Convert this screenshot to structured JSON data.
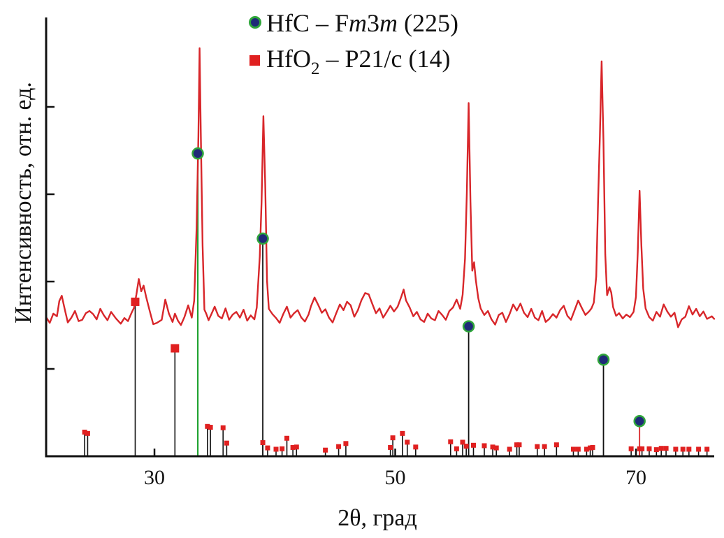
{
  "chart_data": {
    "type": "line",
    "xlabel": "2θ, град",
    "ylabel": "Интенсивность, отн. ед.",
    "xlim": [
      21,
      76.5
    ],
    "ylim": [
      0,
      100
    ],
    "xticks": [
      30,
      50,
      70
    ],
    "ytick_count": 5,
    "grid": false,
    "legend_position": "top-center",
    "colors": {
      "pattern": "#d8262a",
      "hfc_marker_fill": "#1f2a78",
      "hfc_marker_edge": "#2fa63a",
      "hfo2_marker": "#e02020",
      "stick": "#111111",
      "green_line": "#22a332"
    },
    "legend": [
      {
        "formula": "HfC",
        "sep": " – ",
        "sg_lead": "F",
        "sg_italic_1": "m",
        "sg_mid": "3",
        "sg_italic_2": "m",
        "sg_number": " (225)",
        "marker": "circle"
      },
      {
        "formula": "HfO",
        "subscript": "2",
        "sep": " – ",
        "sg": "P21/c",
        "sg_number": " (14)",
        "marker": "square"
      }
    ],
    "series": [
      {
        "name": "HfC – Fm3m (225)",
        "peaks": [
          {
            "x": 33.6,
            "y": 69
          },
          {
            "x": 39.0,
            "y": 49.6
          },
          {
            "x": 56.1,
            "y": 29.6
          },
          {
            "x": 67.3,
            "y": 22.0
          },
          {
            "x": 70.3,
            "y": 8.0
          }
        ]
      },
      {
        "name": "HfO2 – P21/c (14)",
        "peaks": [
          {
            "x": 24.2,
            "y": 5.5
          },
          {
            "x": 24.45,
            "y": 5.2
          },
          {
            "x": 28.4,
            "y": 35.2
          },
          {
            "x": 31.7,
            "y": 24.6
          },
          {
            "x": 34.4,
            "y": 6.8
          },
          {
            "x": 34.65,
            "y": 6.6
          },
          {
            "x": 35.7,
            "y": 6.5
          },
          {
            "x": 36.0,
            "y": 3.0
          },
          {
            "x": 39.0,
            "y": 3.1
          },
          {
            "x": 39.4,
            "y": 1.9
          },
          {
            "x": 40.1,
            "y": 1.6
          },
          {
            "x": 40.6,
            "y": 1.7
          },
          {
            "x": 41.0,
            "y": 4.1
          },
          {
            "x": 41.5,
            "y": 2.0
          },
          {
            "x": 41.8,
            "y": 2.1
          },
          {
            "x": 44.2,
            "y": 1.4
          },
          {
            "x": 45.3,
            "y": 2.2
          },
          {
            "x": 45.9,
            "y": 2.9
          },
          {
            "x": 49.6,
            "y": 2.0
          },
          {
            "x": 49.8,
            "y": 4.2
          },
          {
            "x": 50.6,
            "y": 5.2
          },
          {
            "x": 51.0,
            "y": 3.2
          },
          {
            "x": 51.7,
            "y": 2.1
          },
          {
            "x": 54.6,
            "y": 3.3
          },
          {
            "x": 55.1,
            "y": 1.7
          },
          {
            "x": 55.6,
            "y": 3.2
          },
          {
            "x": 55.9,
            "y": 2.3
          },
          {
            "x": 56.5,
            "y": 2.5
          },
          {
            "x": 57.4,
            "y": 2.4
          },
          {
            "x": 58.1,
            "y": 2.1
          },
          {
            "x": 58.4,
            "y": 1.9
          },
          {
            "x": 59.5,
            "y": 1.6
          },
          {
            "x": 60.1,
            "y": 2.6
          },
          {
            "x": 60.3,
            "y": 2.6
          },
          {
            "x": 61.8,
            "y": 2.2
          },
          {
            "x": 62.4,
            "y": 2.2
          },
          {
            "x": 63.4,
            "y": 2.6
          },
          {
            "x": 64.8,
            "y": 1.6
          },
          {
            "x": 65.2,
            "y": 1.6
          },
          {
            "x": 65.9,
            "y": 1.6
          },
          {
            "x": 66.2,
            "y": 1.9
          },
          {
            "x": 66.4,
            "y": 2.0
          },
          {
            "x": 69.6,
            "y": 1.7
          },
          {
            "x": 70.3,
            "y": 1.7
          },
          {
            "x": 70.5,
            "y": 1.7
          },
          {
            "x": 71.1,
            "y": 1.7
          },
          {
            "x": 71.7,
            "y": 1.5
          },
          {
            "x": 72.1,
            "y": 1.8
          },
          {
            "x": 72.5,
            "y": 1.8
          },
          {
            "x": 73.3,
            "y": 1.6
          },
          {
            "x": 73.9,
            "y": 1.6
          },
          {
            "x": 74.4,
            "y": 1.6
          },
          {
            "x": 75.2,
            "y": 1.6
          },
          {
            "x": 75.9,
            "y": 1.6
          }
        ]
      }
    ],
    "pattern": {
      "points": [
        [
          21.0,
          31.7
        ],
        [
          21.3,
          30.4
        ],
        [
          21.6,
          32.5
        ],
        [
          21.9,
          31.9
        ],
        [
          22.1,
          35.4
        ],
        [
          22.3,
          36.6
        ],
        [
          22.5,
          34.1
        ],
        [
          22.8,
          30.5
        ],
        [
          23.1,
          31.6
        ],
        [
          23.4,
          33.1
        ],
        [
          23.7,
          30.8
        ],
        [
          24.0,
          31.1
        ],
        [
          24.3,
          32.6
        ],
        [
          24.6,
          33.1
        ],
        [
          24.9,
          32.4
        ],
        [
          25.2,
          31.2
        ],
        [
          25.5,
          33.6
        ],
        [
          25.8,
          32.1
        ],
        [
          26.1,
          31.0
        ],
        [
          26.4,
          32.9
        ],
        [
          26.8,
          31.4
        ],
        [
          27.2,
          30.2
        ],
        [
          27.5,
          31.5
        ],
        [
          27.8,
          30.8
        ],
        [
          28.1,
          32.7
        ],
        [
          28.3,
          33.8
        ],
        [
          28.5,
          36.9
        ],
        [
          28.7,
          40.4
        ],
        [
          28.9,
          37.6
        ],
        [
          29.1,
          38.9
        ],
        [
          29.3,
          36.4
        ],
        [
          29.6,
          33.2
        ],
        [
          29.9,
          30.1
        ],
        [
          30.2,
          30.4
        ],
        [
          30.6,
          31.1
        ],
        [
          30.9,
          35.7
        ],
        [
          31.2,
          32.5
        ],
        [
          31.5,
          30.6
        ],
        [
          31.7,
          32.5
        ],
        [
          31.95,
          30.9
        ],
        [
          32.2,
          29.9
        ],
        [
          32.5,
          31.8
        ],
        [
          32.8,
          34.4
        ],
        [
          33.1,
          31.6
        ],
        [
          33.3,
          35.5
        ],
        [
          33.5,
          52.0
        ],
        [
          33.65,
          73.0
        ],
        [
          33.75,
          93.0
        ],
        [
          33.85,
          74.0
        ],
        [
          34.0,
          48.0
        ],
        [
          34.15,
          33.4
        ],
        [
          34.3,
          32.5
        ],
        [
          34.5,
          31.0
        ],
        [
          34.75,
          32.5
        ],
        [
          35.0,
          34.1
        ],
        [
          35.3,
          32.0
        ],
        [
          35.6,
          31.4
        ],
        [
          35.9,
          33.7
        ],
        [
          36.2,
          31.1
        ],
        [
          36.5,
          32.3
        ],
        [
          36.8,
          32.9
        ],
        [
          37.1,
          31.6
        ],
        [
          37.4,
          33.4
        ],
        [
          37.7,
          30.9
        ],
        [
          38.0,
          32.1
        ],
        [
          38.3,
          31.2
        ],
        [
          38.5,
          33.9
        ],
        [
          38.75,
          45.5
        ],
        [
          38.9,
          58.0
        ],
        [
          39.05,
          77.5
        ],
        [
          39.2,
          62.0
        ],
        [
          39.35,
          40.0
        ],
        [
          39.5,
          33.6
        ],
        [
          39.8,
          32.4
        ],
        [
          40.1,
          31.5
        ],
        [
          40.4,
          30.4
        ],
        [
          40.7,
          32.4
        ],
        [
          41.0,
          34.1
        ],
        [
          41.3,
          31.6
        ],
        [
          41.6,
          32.6
        ],
        [
          41.9,
          33.3
        ],
        [
          42.2,
          31.6
        ],
        [
          42.5,
          30.7
        ],
        [
          42.8,
          32.3
        ],
        [
          43.0,
          34.2
        ],
        [
          43.3,
          36.2
        ],
        [
          43.6,
          34.5
        ],
        [
          43.9,
          32.7
        ],
        [
          44.2,
          33.5
        ],
        [
          44.5,
          31.6
        ],
        [
          44.8,
          30.5
        ],
        [
          45.1,
          32.6
        ],
        [
          45.4,
          34.6
        ],
        [
          45.7,
          33.3
        ],
        [
          46.0,
          35.2
        ],
        [
          46.3,
          34.4
        ],
        [
          46.6,
          31.8
        ],
        [
          46.9,
          33.3
        ],
        [
          47.2,
          35.6
        ],
        [
          47.5,
          37.2
        ],
        [
          47.8,
          36.9
        ],
        [
          48.1,
          34.7
        ],
        [
          48.4,
          32.6
        ],
        [
          48.7,
          33.7
        ],
        [
          49.0,
          31.6
        ],
        [
          49.3,
          32.9
        ],
        [
          49.6,
          34.3
        ],
        [
          49.9,
          33.0
        ],
        [
          50.2,
          34.1
        ],
        [
          50.5,
          36.3
        ],
        [
          50.7,
          38.0
        ],
        [
          50.9,
          35.5
        ],
        [
          51.2,
          33.9
        ],
        [
          51.5,
          31.9
        ],
        [
          51.8,
          32.9
        ],
        [
          52.1,
          31.2
        ],
        [
          52.4,
          30.6
        ],
        [
          52.7,
          32.5
        ],
        [
          53.0,
          31.4
        ],
        [
          53.3,
          31.0
        ],
        [
          53.6,
          33.1
        ],
        [
          53.9,
          32.2
        ],
        [
          54.2,
          31.1
        ],
        [
          54.5,
          33.1
        ],
        [
          54.8,
          33.9
        ],
        [
          55.1,
          35.7
        ],
        [
          55.4,
          33.6
        ],
        [
          55.6,
          36.8
        ],
        [
          55.8,
          45.0
        ],
        [
          55.95,
          60.0
        ],
        [
          56.1,
          80.5
        ],
        [
          56.25,
          58.0
        ],
        [
          56.4,
          42.3
        ],
        [
          56.55,
          44.2
        ],
        [
          56.7,
          40.1
        ],
        [
          56.9,
          36.0
        ],
        [
          57.1,
          33.7
        ],
        [
          57.4,
          32.2
        ],
        [
          57.7,
          33.1
        ],
        [
          58.0,
          31.2
        ],
        [
          58.3,
          30.0
        ],
        [
          58.6,
          32.2
        ],
        [
          58.9,
          32.7
        ],
        [
          59.2,
          30.6
        ],
        [
          59.5,
          32.4
        ],
        [
          59.8,
          34.6
        ],
        [
          60.1,
          33.2
        ],
        [
          60.4,
          34.8
        ],
        [
          60.7,
          32.7
        ],
        [
          61.0,
          31.7
        ],
        [
          61.3,
          33.6
        ],
        [
          61.6,
          31.6
        ],
        [
          61.9,
          31.0
        ],
        [
          62.2,
          33.1
        ],
        [
          62.5,
          30.6
        ],
        [
          62.8,
          31.3
        ],
        [
          63.1,
          32.4
        ],
        [
          63.4,
          31.6
        ],
        [
          63.7,
          33.3
        ],
        [
          64.0,
          34.3
        ],
        [
          64.3,
          32.0
        ],
        [
          64.6,
          31.1
        ],
        [
          64.9,
          33.3
        ],
        [
          65.2,
          35.5
        ],
        [
          65.5,
          33.8
        ],
        [
          65.8,
          32.2
        ],
        [
          66.1,
          33.0
        ],
        [
          66.3,
          33.7
        ],
        [
          66.5,
          35.0
        ],
        [
          66.7,
          41.0
        ],
        [
          66.85,
          58.0
        ],
        [
          67.0,
          73.0
        ],
        [
          67.15,
          90.0
        ],
        [
          67.3,
          72.0
        ],
        [
          67.45,
          46.0
        ],
        [
          67.6,
          36.7
        ],
        [
          67.8,
          38.5
        ],
        [
          67.95,
          37.3
        ],
        [
          68.1,
          34.0
        ],
        [
          68.35,
          32.0
        ],
        [
          68.6,
          32.6
        ],
        [
          68.9,
          31.4
        ],
        [
          69.2,
          32.3
        ],
        [
          69.5,
          31.7
        ],
        [
          69.8,
          32.9
        ],
        [
          70.0,
          36.3
        ],
        [
          70.15,
          46.5
        ],
        [
          70.3,
          60.5
        ],
        [
          70.45,
          48.0
        ],
        [
          70.6,
          38.2
        ],
        [
          70.8,
          33.7
        ],
        [
          71.1,
          31.7
        ],
        [
          71.4,
          30.9
        ],
        [
          71.7,
          32.9
        ],
        [
          72.0,
          31.8
        ],
        [
          72.3,
          34.6
        ],
        [
          72.6,
          33.0
        ],
        [
          72.9,
          31.8
        ],
        [
          73.2,
          32.7
        ],
        [
          73.5,
          29.4
        ],
        [
          73.8,
          31.2
        ],
        [
          74.1,
          31.8
        ],
        [
          74.4,
          34.2
        ],
        [
          74.7,
          32.3
        ],
        [
          75.0,
          33.6
        ],
        [
          75.3,
          31.9
        ],
        [
          75.6,
          33.0
        ],
        [
          75.9,
          31.3
        ],
        [
          76.3,
          31.9
        ],
        [
          76.5,
          31.3
        ]
      ]
    }
  }
}
